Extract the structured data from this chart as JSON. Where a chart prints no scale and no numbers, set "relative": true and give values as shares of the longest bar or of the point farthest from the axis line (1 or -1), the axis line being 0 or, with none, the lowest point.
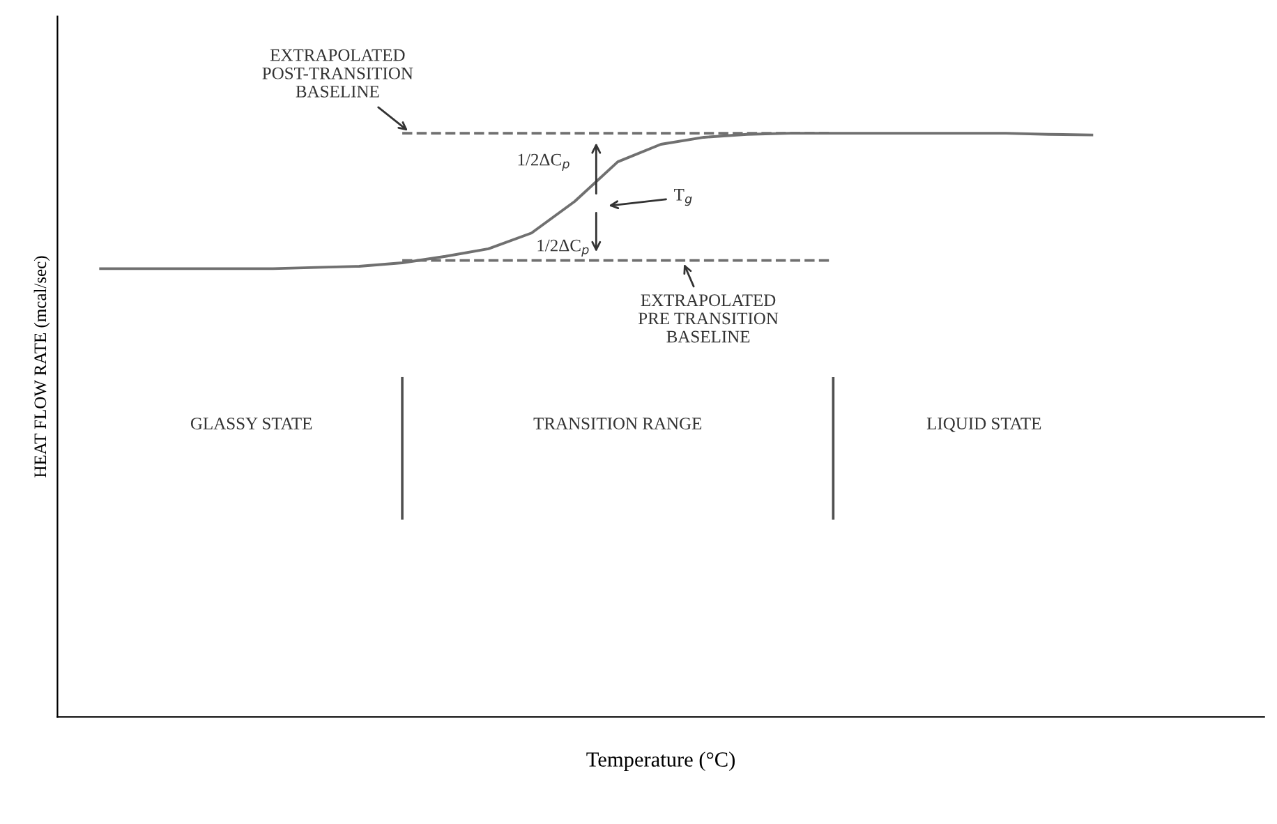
{
  "chart_data": {
    "type": "line",
    "relative": true,
    "xlabel": "Temperature (°C)",
    "ylabel": "HEAT FLOW RATE (mcal/sec)",
    "categories": [
      null,
      null,
      null,
      null,
      null,
      null,
      null,
      null,
      null,
      null,
      null,
      null,
      null,
      null,
      null,
      null,
      null,
      null,
      null,
      null,
      null,
      null,
      null,
      null
    ],
    "series": [
      {
        "color": "#707070",
        "values": [
          0.768,
          0.768,
          0.768,
          0.768,
          0.768,
          0.77,
          0.772,
          0.778,
          0.789,
          0.802,
          0.829,
          0.883,
          0.951,
          0.981,
          0.993,
          0.998,
          1.0,
          1.0,
          1.0,
          1.0,
          1.0,
          1.0,
          0.998,
          0.997
        ]
      },
      {
        "color": "#707070",
        "line_style": "dashed",
        "values": [
          null,
          null,
          null,
          null,
          null,
          null,
          null,
          1.0,
          1.0,
          1.0,
          1.0,
          1.0,
          1.0,
          1.0,
          1.0,
          1.0,
          1.0,
          1.0,
          null,
          null,
          null,
          null,
          null,
          null
        ]
      },
      {
        "color": "#707070",
        "line_style": "dashed",
        "values": [
          null,
          null,
          null,
          null,
          null,
          null,
          null,
          0.782,
          0.782,
          0.782,
          0.782,
          0.782,
          0.782,
          0.782,
          0.782,
          0.782,
          0.782,
          0.782,
          null,
          null,
          null,
          null,
          null,
          null
        ]
      }
    ],
    "annotations": [
      "EXTRAPOLATED\nPOST-TRANSITION\nBASELINE",
      "1/2ΔC$_{p}$",
      "T$_{g}$",
      "1/2ΔC$_{p}$",
      "EXTRAPOLATED\nPRE TRANSITION\nBASELINE",
      "GLASSY STATE",
      "TRANSITION RANGE",
      "LIQUID STATE"
    ],
    "marker": "none"
  }
}
